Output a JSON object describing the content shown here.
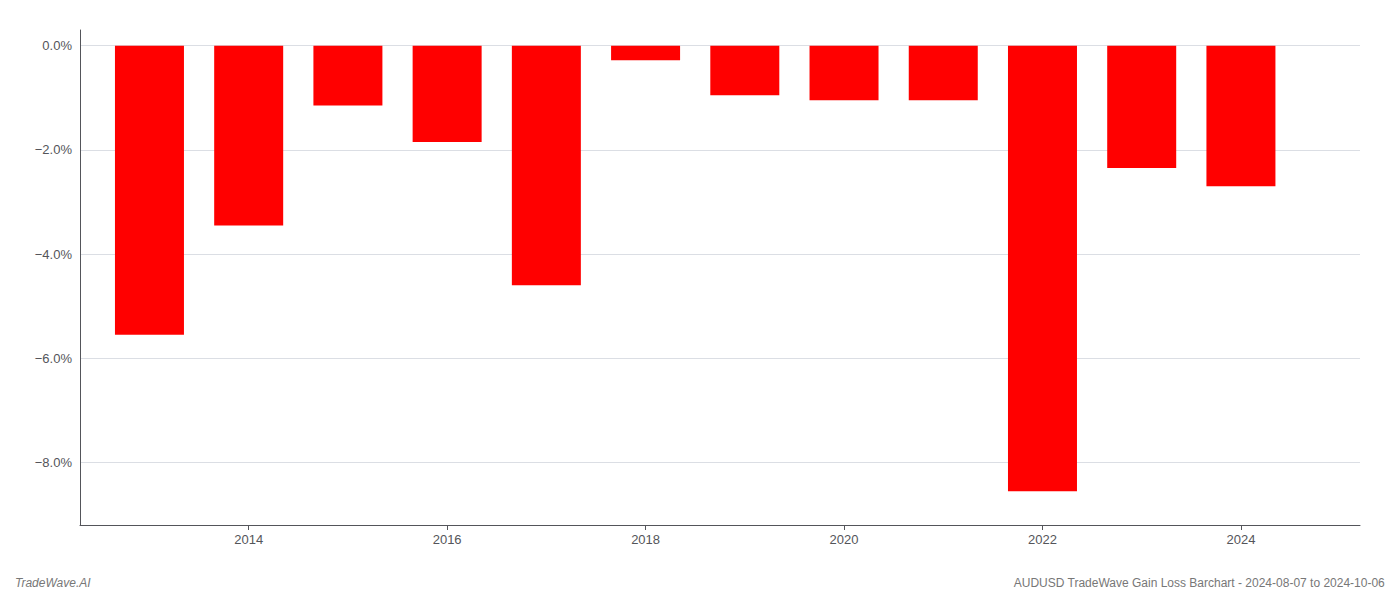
{
  "chart_data": {
    "type": "bar",
    "title": "AUDUSD TradeWave Gain Loss Barchart - 2024-08-07 to 2024-10-06",
    "annotations": [
      "TradeWave.AI"
    ],
    "x": [
      2013,
      2014,
      2015,
      2016,
      2017,
      2018,
      2019,
      2020,
      2021,
      2022,
      2023,
      2024
    ],
    "values": [
      -5.55,
      -3.45,
      -1.15,
      -1.85,
      -4.6,
      -0.28,
      -0.95,
      -1.05,
      -1.05,
      -8.55,
      -2.35,
      -2.7
    ],
    "color": "#ff0000",
    "xlim": [
      2012.3,
      2025.2
    ],
    "xticks": [
      2014,
      2016,
      2018,
      2020,
      2022,
      2024
    ],
    "ylim": [
      -9.2,
      0.3
    ],
    "yticks": [
      {
        "value": 0.0,
        "label": "0.0%"
      },
      {
        "value": -2.0,
        "label": "−2.0%"
      },
      {
        "value": -4.0,
        "label": "−4.0%"
      },
      {
        "value": -6.0,
        "label": "−6.0%"
      },
      {
        "value": -8.0,
        "label": "−8.0%"
      }
    ],
    "grid": true
  }
}
